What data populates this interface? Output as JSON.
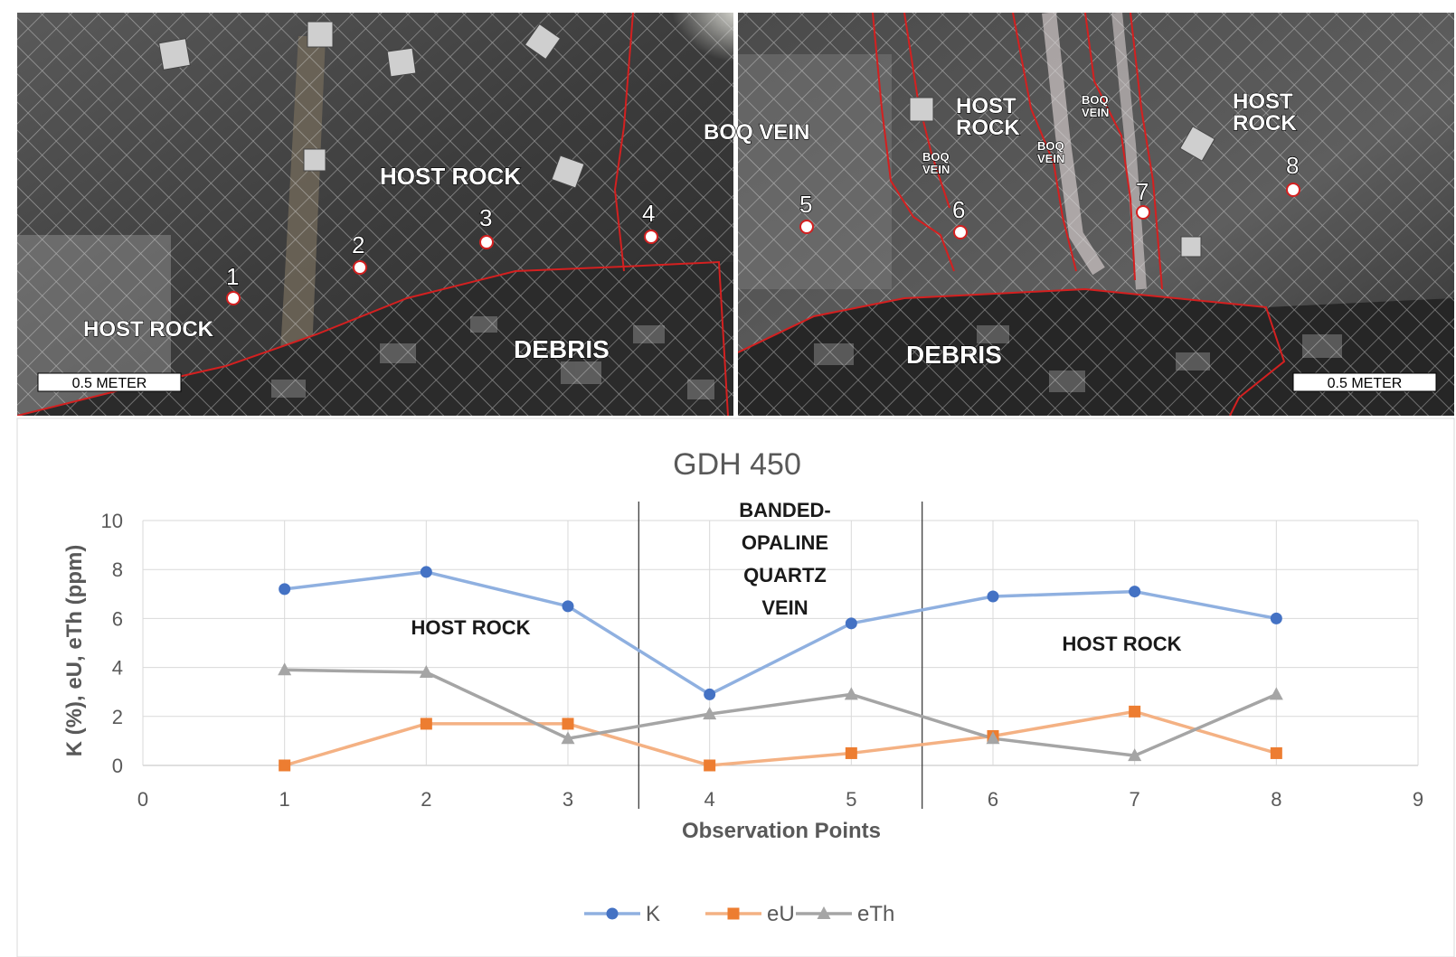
{
  "photos": {
    "left": {
      "labels": [
        "HOST ROCK",
        "HOST ROCK",
        "BOQ VEIN",
        "DEBRIS"
      ],
      "points": [
        "1",
        "2",
        "3",
        "4"
      ],
      "scale": "0.5 METER"
    },
    "right": {
      "labels": [
        "HOST ROCK",
        "HOST ROCK",
        "BOQ VEIN",
        "BOQ VEIN",
        "BOQ VEIN",
        "DEBRIS"
      ],
      "points": [
        "5",
        "6",
        "7",
        "8"
      ],
      "scale": "0.5 METER"
    },
    "colors": {
      "contact_line": "#d42020"
    }
  },
  "chart_data": {
    "type": "line",
    "title": "GDH 450",
    "xlabel": "Observation Points",
    "ylabel": "K (%), eU, eTh (ppm)",
    "xlim": [
      0,
      9
    ],
    "ylim": [
      0,
      10
    ],
    "xticks": [
      0,
      1,
      2,
      3,
      4,
      5,
      6,
      7,
      8,
      9
    ],
    "yticks": [
      0,
      2,
      4,
      6,
      8,
      10
    ],
    "grid": true,
    "legend": "bottom",
    "x": [
      1,
      2,
      3,
      4,
      5,
      6,
      7,
      8
    ],
    "series": [
      {
        "name": "K",
        "values": [
          7.2,
          7.9,
          6.5,
          2.9,
          5.8,
          6.9,
          7.1,
          6.0
        ],
        "color": "#4472c4",
        "marker": "circle",
        "line_color": "#8fb0e0"
      },
      {
        "name": "eU",
        "values": [
          0.0,
          1.7,
          1.7,
          0.0,
          0.5,
          1.2,
          2.2,
          0.5
        ],
        "color": "#ed7d31",
        "marker": "square",
        "line_color": "#f4b183"
      },
      {
        "name": "eTh",
        "values": [
          3.9,
          3.8,
          1.1,
          2.1,
          2.9,
          1.1,
          0.4,
          2.9
        ],
        "color": "#a5a5a5",
        "marker": "triangle",
        "line_color": "#a5a5a5"
      }
    ],
    "dividers": [
      3.5,
      5.5
    ],
    "zones": [
      {
        "lines": [
          "HOST ROCK"
        ]
      },
      {
        "lines": [
          "BANDED-",
          "OPALINE",
          "QUARTZ",
          "VEIN"
        ]
      },
      {
        "lines": [
          "HOST ROCK"
        ]
      }
    ]
  }
}
